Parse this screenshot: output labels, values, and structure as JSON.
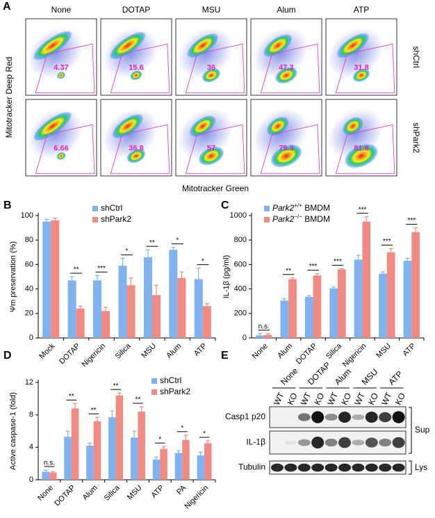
{
  "flow_cytometry": {
    "panel": "A",
    "columns": [
      "None",
      "DOTAP",
      "MSU",
      "Alum",
      "ATP"
    ],
    "rows": [
      "shCtrl",
      "shPark2"
    ],
    "percentages": [
      [
        4.37,
        15.6,
        36,
        47.3,
        31.8
      ],
      [
        6.66,
        36.8,
        57,
        75.3,
        81.6
      ]
    ],
    "x_label": "Mitotracker Green",
    "y_label": "Mitotracker Deep Red"
  },
  "chart_data": [
    {
      "type": "bar",
      "panel": "B",
      "y_label": "Ψm preservation (%)",
      "categories": [
        "Mock",
        "DOTAP",
        "Nigericin",
        "Silica",
        "MSU",
        "Alum",
        "ATP"
      ],
      "series": [
        {
          "name": "shCtrl",
          "color": "#7fb2ee",
          "values": [
            95,
            47,
            47,
            59,
            66,
            72,
            48
          ],
          "errors": [
            2,
            3,
            4,
            6,
            6,
            2,
            9
          ]
        },
        {
          "name": "shPark2",
          "color": "#f28a84",
          "values": [
            96,
            24,
            22,
            43,
            35,
            49,
            26
          ],
          "errors": [
            2,
            2,
            3,
            6,
            8,
            5,
            2
          ]
        }
      ],
      "annotations": [
        null,
        "**",
        "***",
        "*",
        "**",
        "*",
        "*"
      ],
      "ylim": [
        0,
        100
      ],
      "yticks": [
        0,
        20,
        40,
        60,
        80,
        100
      ],
      "legend": "top-center"
    },
    {
      "type": "bar",
      "panel": "C",
      "y_label": "IL-1β (pg/ml)",
      "categories": [
        "None",
        "Alum",
        "DOTAP",
        "Silica",
        "Nigericin",
        "MSU",
        "ATP"
      ],
      "series": [
        {
          "name": "Park2+/+ BMDM",
          "color": "#7fb2ee",
          "values": [
            20,
            305,
            335,
            405,
            640,
            525,
            630
          ],
          "errors": [
            15,
            15,
            10,
            10,
            35,
            15,
            20
          ]
        },
        {
          "name": "Park2−/− BMDM",
          "color": "#f28a84",
          "values": [
            25,
            480,
            510,
            560,
            950,
            700,
            865
          ],
          "errors": [
            10,
            10,
            15,
            5,
            40,
            30,
            35
          ]
        }
      ],
      "annotations": [
        "n.s.",
        "**",
        "***",
        "***",
        "***",
        "***",
        "***"
      ],
      "ylim": [
        0,
        1000
      ],
      "yticks": [
        0,
        200,
        400,
        600,
        800,
        1000
      ],
      "legend": "top-left"
    },
    {
      "type": "bar",
      "panel": "D",
      "y_label": "Active caspase-1 (fold)",
      "categories": [
        "None",
        "DOTAP",
        "Alum",
        "Silica",
        "MSU",
        "ATP",
        "PA",
        "Nigericin"
      ],
      "series": [
        {
          "name": "shCtrl",
          "color": "#7fb2ee",
          "values": [
            1.0,
            5.3,
            4.2,
            7.7,
            5.2,
            2.5,
            3.3,
            3.0
          ],
          "errors": [
            0.2,
            0.7,
            0.3,
            0.8,
            0.8,
            0.3,
            0.3,
            0.4
          ]
        },
        {
          "name": "shPark2",
          "color": "#f28a84",
          "values": [
            0.9,
            8.8,
            7.2,
            10.4,
            8.4,
            3.8,
            4.9,
            4.5
          ],
          "errors": [
            0.1,
            0.6,
            0.5,
            0.3,
            0.6,
            0.3,
            0.6,
            0.3
          ]
        }
      ],
      "annotations": [
        "n.s.",
        "**",
        "**",
        "**",
        "**",
        "*",
        "*",
        "*"
      ],
      "ylim": [
        0,
        12
      ],
      "yticks": [
        0,
        4,
        8,
        12
      ],
      "legend": "top-right"
    }
  ],
  "western_blot": {
    "panel": "E",
    "groups": [
      "None",
      "DOTAP",
      "Alum",
      "MSU",
      "ATP"
    ],
    "lanes": [
      "WT",
      "KO",
      "WT",
      "KO",
      "WT",
      "KO",
      "WT",
      "KO",
      "WT",
      "KO"
    ],
    "rows": [
      "Casp1 p20",
      "IL-1β",
      "Tubulin"
    ],
    "fractions": [
      "Sup",
      "Lys"
    ]
  }
}
